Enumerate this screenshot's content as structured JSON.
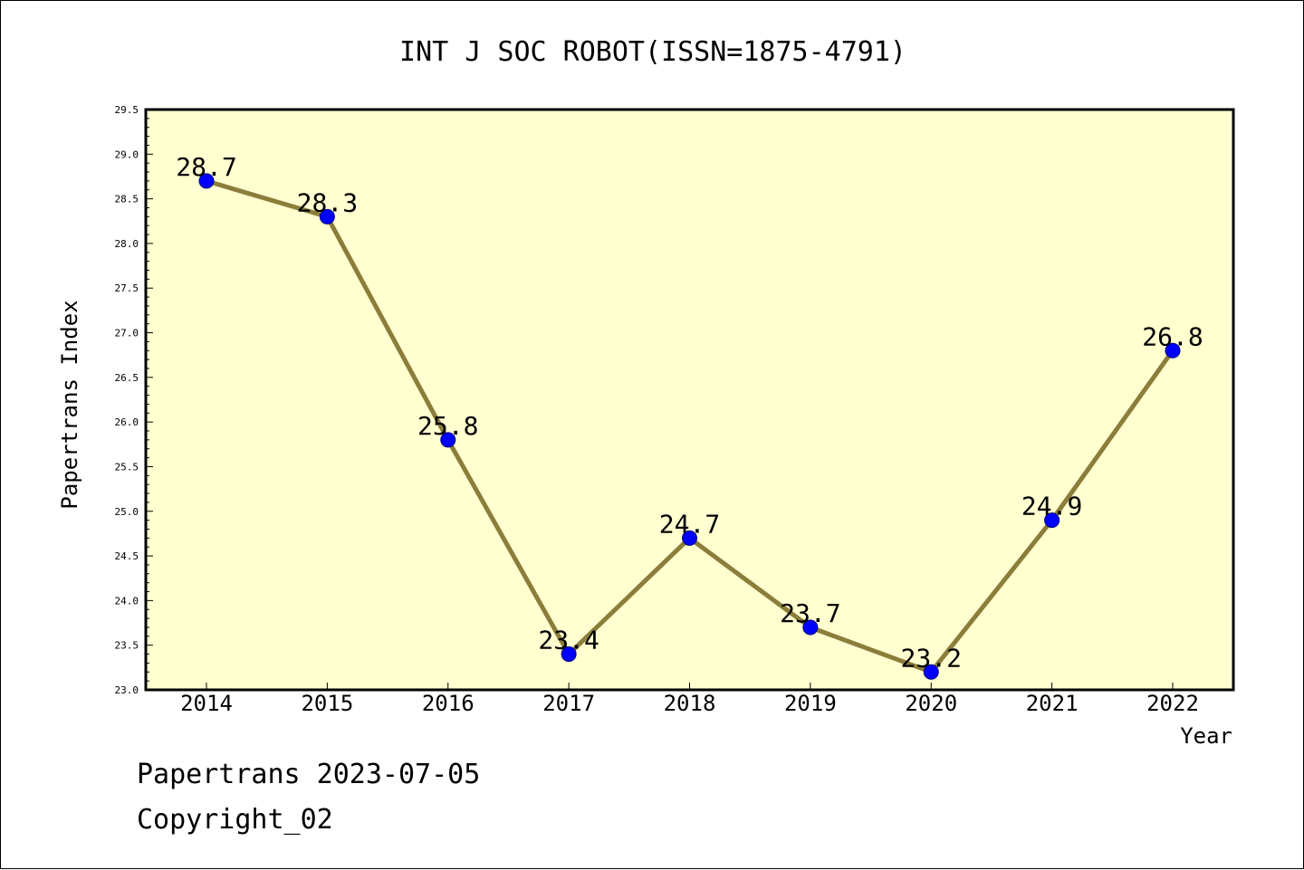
{
  "chart_data": {
    "type": "line",
    "title": "INT J SOC ROBOT(ISSN=1875-4791)",
    "xlabel": "Year",
    "ylabel": "Papertrans Index",
    "categories": [
      "2014",
      "2015",
      "2016",
      "2017",
      "2018",
      "2019",
      "2020",
      "2021",
      "2022"
    ],
    "values": [
      28.7,
      28.3,
      25.8,
      23.4,
      24.7,
      23.7,
      23.2,
      24.9,
      26.8
    ],
    "data_labels": [
      "28.7",
      "28.3",
      "25.8",
      "23.4",
      "24.7",
      "23.7",
      "23.2",
      "24.9",
      "26.8"
    ],
    "ylim": [
      23.0,
      29.5
    ],
    "yticks": [
      "23.0",
      "23.5",
      "24.0",
      "24.5",
      "25.0",
      "25.5",
      "26.0",
      "26.5",
      "27.0",
      "27.5",
      "28.0",
      "28.5",
      "29.0",
      "29.5"
    ],
    "grid": false,
    "colors": {
      "plot_background": "#ffffd0",
      "line": "#8b7d3a",
      "marker_fill": "#0000ff",
      "marker_edge": "#000080"
    }
  },
  "footer": {
    "source": "Papertrans 2023-07-05",
    "copyright": "Copyright_02"
  }
}
